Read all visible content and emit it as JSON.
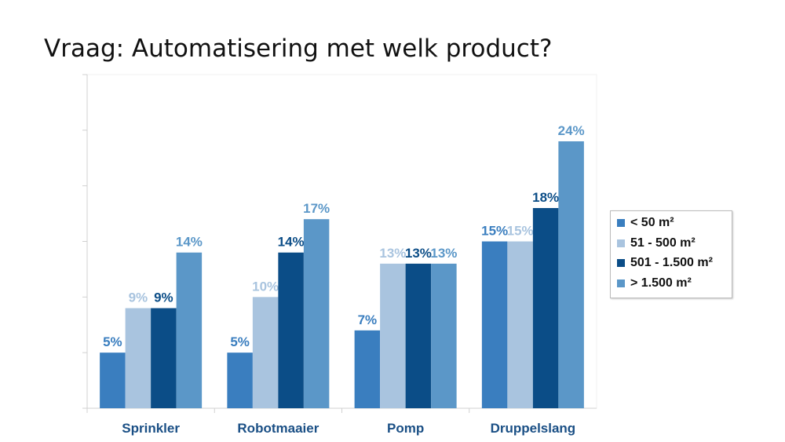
{
  "title": "Vraag: Automatisering met welk product?",
  "chart_data": {
    "type": "bar",
    "title": "",
    "xlabel": "",
    "ylabel": "",
    "ylim": [
      0,
      30
    ],
    "y_tick_step": 5,
    "y_tick_labels_shown": false,
    "grid": false,
    "legend_position": "right",
    "categories": [
      "Sprinkler",
      "Robotmaaier",
      "Pomp",
      "Druppelslang"
    ],
    "series": [
      {
        "name": "< 50 m²",
        "color": "#3a7ebf",
        "values": [
          5,
          5,
          7,
          15
        ],
        "labels": [
          "5%",
          "5%",
          "7%",
          "15%"
        ]
      },
      {
        "name": "51 - 500 m²",
        "color": "#a9c4df",
        "values": [
          9,
          10,
          13,
          15
        ],
        "labels": [
          "9%",
          "10%",
          "13%",
          "15%"
        ]
      },
      {
        "name": "501 - 1.500 m²",
        "color": "#0b4d87",
        "values": [
          9,
          14,
          13,
          18
        ],
        "labels": [
          "9%",
          "14%",
          "13%",
          "18%"
        ]
      },
      {
        "name": "> 1.500 m²",
        "color": "#5b97c8",
        "values": [
          14,
          17,
          13,
          24
        ],
        "labels": [
          "14%",
          "17%",
          "13%",
          "24%"
        ]
      }
    ],
    "category_label_color": "#1a4f85"
  }
}
